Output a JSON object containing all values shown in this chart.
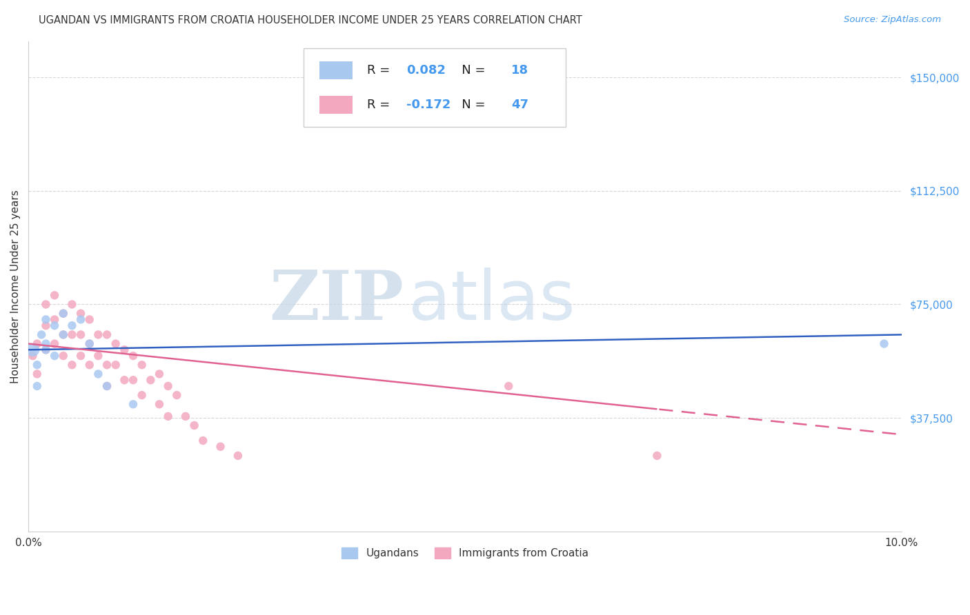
{
  "title": "UGANDAN VS IMMIGRANTS FROM CROATIA HOUSEHOLDER INCOME UNDER 25 YEARS CORRELATION CHART",
  "source": "Source: ZipAtlas.com",
  "ylabel": "Householder Income Under 25 years",
  "xlim": [
    0.0,
    0.1
  ],
  "ylim": [
    0,
    162000
  ],
  "ugandan_R": 0.082,
  "ugandan_N": 18,
  "croatia_R": -0.172,
  "croatia_N": 47,
  "ugandan_color": "#A8C8F0",
  "croatia_color": "#F4A8C0",
  "ugandan_line_color": "#3060C0",
  "croatia_line_color": "#E06090",
  "background_color": "#FFFFFF",
  "grid_color": "#CCCCCC",
  "title_color": "#333333",
  "axis_label_color": "#4499EE",
  "ugandan_x": [
    0.0005,
    0.001,
    0.001,
    0.0015,
    0.002,
    0.002,
    0.002,
    0.003,
    0.003,
    0.004,
    0.004,
    0.005,
    0.006,
    0.007,
    0.008,
    0.009,
    0.012,
    0.098
  ],
  "ugandan_y": [
    60000,
    55000,
    48000,
    65000,
    62000,
    70000,
    60000,
    68000,
    58000,
    72000,
    65000,
    68000,
    70000,
    62000,
    52000,
    48000,
    42000,
    62000
  ],
  "ugandan_size": [
    200,
    80,
    80,
    80,
    80,
    80,
    80,
    80,
    80,
    80,
    80,
    80,
    80,
    80,
    80,
    80,
    80,
    80
  ],
  "croatia_x": [
    0.0005,
    0.001,
    0.001,
    0.002,
    0.002,
    0.002,
    0.003,
    0.003,
    0.003,
    0.004,
    0.004,
    0.004,
    0.005,
    0.005,
    0.005,
    0.006,
    0.006,
    0.006,
    0.007,
    0.007,
    0.007,
    0.008,
    0.008,
    0.009,
    0.009,
    0.009,
    0.01,
    0.01,
    0.011,
    0.011,
    0.012,
    0.012,
    0.013,
    0.013,
    0.014,
    0.015,
    0.015,
    0.016,
    0.016,
    0.017,
    0.018,
    0.019,
    0.02,
    0.022,
    0.024,
    0.055,
    0.072
  ],
  "croatia_y": [
    58000,
    62000,
    52000,
    75000,
    68000,
    60000,
    78000,
    70000,
    62000,
    72000,
    65000,
    58000,
    75000,
    65000,
    55000,
    72000,
    65000,
    58000,
    70000,
    62000,
    55000,
    65000,
    58000,
    65000,
    55000,
    48000,
    62000,
    55000,
    60000,
    50000,
    58000,
    50000,
    55000,
    45000,
    50000,
    52000,
    42000,
    48000,
    38000,
    45000,
    38000,
    35000,
    30000,
    28000,
    25000,
    48000,
    25000
  ],
  "croatia_size": [
    80,
    80,
    80,
    80,
    80,
    80,
    80,
    80,
    80,
    80,
    80,
    80,
    80,
    80,
    80,
    80,
    80,
    80,
    80,
    80,
    80,
    80,
    80,
    80,
    80,
    80,
    80,
    80,
    80,
    80,
    80,
    80,
    80,
    80,
    80,
    80,
    80,
    80,
    80,
    80,
    80,
    80,
    80,
    80,
    80,
    80,
    80
  ],
  "legend_label_ugandan": "Ugandans",
  "legend_label_croatia": "Immigrants from Croatia",
  "ytick_vals": [
    37500,
    75000,
    112500,
    150000
  ],
  "ytick_labels": [
    "$37,500",
    "$75,000",
    "$112,500",
    "$150,000"
  ],
  "xtick_positions": [
    0.0,
    0.02,
    0.04,
    0.06,
    0.08,
    0.1
  ],
  "xtick_labels": [
    "0.0%",
    "",
    "",
    "",
    "",
    "10.0%"
  ]
}
